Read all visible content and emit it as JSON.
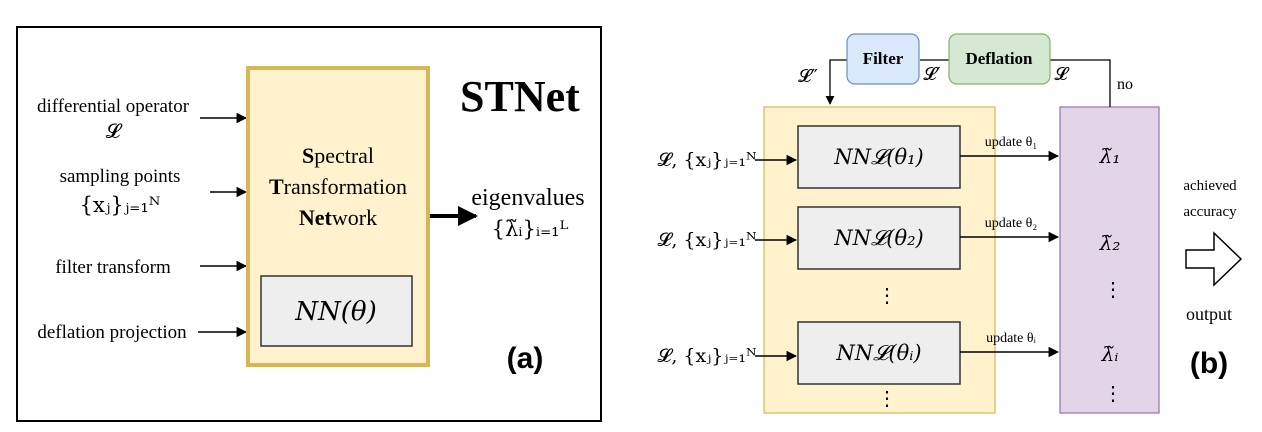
{
  "panel_a": {
    "title": "STNet",
    "label": "(a)",
    "inputs": [
      {
        "line1": "differential operator",
        "line2": "𝓛"
      },
      {
        "line1": "sampling points",
        "line2": "{xⱼ}ⱼ₌₁ᴺ"
      },
      {
        "line1": "filter transform",
        "line2": ""
      },
      {
        "line1": "deflation projection",
        "line2": ""
      }
    ],
    "box": {
      "bold1": "S",
      "rest1": "pectral",
      "bold2": "T",
      "rest2": "ransformation",
      "bold3": "Net",
      "rest3": "work"
    },
    "nn_label": "NN(θ)",
    "output": {
      "line1": "eigenvalues",
      "line2": "{λ̃ᵢ}ᵢ₌₁ᴸ"
    }
  },
  "panel_b": {
    "label": "(b)",
    "filter_label": "Filter",
    "deflation_label": "Deflation",
    "l_double_prime": "𝓛″",
    "l_prime": "𝓛′",
    "l_plain": "𝓛",
    "no_label": "no",
    "input_label": "𝓛, {xⱼ}ⱼ₌₁ᴺ",
    "nn_boxes": [
      "NN𝓛(θ₁)",
      "NN𝓛(θ₂)",
      "NN𝓛(θᵢ)"
    ],
    "updates": [
      "update θ₁",
      "update θ₂",
      "update θᵢ"
    ],
    "lambdas": [
      "λ̃₁",
      "λ̃₂",
      "λ̃ᵢ"
    ],
    "vdots": "⋮",
    "achieved_line1": "achieved",
    "achieved_line2": "accuracy",
    "output_label": "output"
  }
}
